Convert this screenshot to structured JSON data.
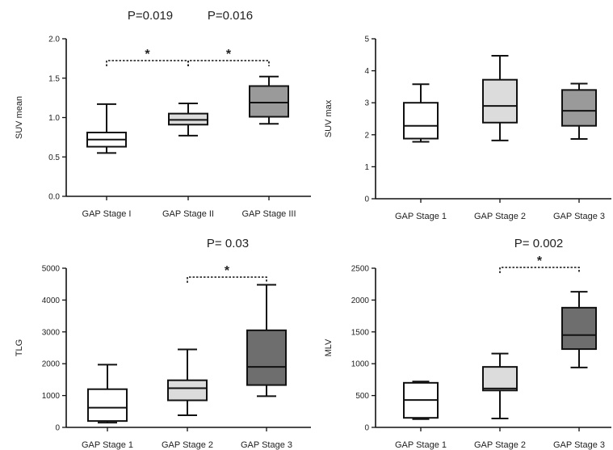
{
  "colors": {
    "axis": "#111111",
    "stroke": "#111111",
    "background": "#ffffff"
  },
  "chart_data": [
    {
      "type": "box",
      "title": "",
      "ylabel": "SUV mean",
      "ylim": [
        0,
        2.0
      ],
      "yticks": [
        "0.0",
        "0.5",
        "1.0",
        "1.5",
        "2.0"
      ],
      "ytick_values": [
        0,
        0.5,
        1.0,
        1.5,
        2.0
      ],
      "categories": [
        "GAP Stage I",
        "GAP Stage II",
        "GAP Stage III"
      ],
      "box_colors": [
        "#ffffff",
        "#dcdcdc",
        "#9a9a9a"
      ],
      "boxes": [
        {
          "min": 0.55,
          "q1": 0.63,
          "median": 0.72,
          "q3": 0.81,
          "max": 1.17
        },
        {
          "min": 0.77,
          "q1": 0.91,
          "median": 0.97,
          "q3": 1.05,
          "max": 1.18
        },
        {
          "min": 0.92,
          "q1": 1.01,
          "median": 1.19,
          "q3": 1.4,
          "max": 1.52
        }
      ],
      "pvalues": [
        "P=0.019",
        "P=0.016"
      ],
      "brackets": [
        {
          "from": 0,
          "to": 1,
          "label": "*"
        },
        {
          "from": 1,
          "to": 2,
          "label": "*"
        }
      ]
    },
    {
      "type": "box",
      "title": "",
      "ylabel": "SUV max",
      "ylim": [
        0,
        5
      ],
      "yticks": [
        "0",
        "1",
        "2",
        "3",
        "4",
        "5"
      ],
      "ytick_values": [
        0,
        1,
        2,
        3,
        4,
        5
      ],
      "categories": [
        "GAP Stage 1",
        "GAP Stage 2",
        "GAP Stage 3"
      ],
      "box_colors": [
        "#ffffff",
        "#dcdcdc",
        "#9a9a9a"
      ],
      "boxes": [
        {
          "min": 1.78,
          "q1": 1.88,
          "median": 2.28,
          "q3": 3.0,
          "max": 3.58
        },
        {
          "min": 1.82,
          "q1": 2.38,
          "median": 2.9,
          "q3": 3.72,
          "max": 4.47
        },
        {
          "min": 1.87,
          "q1": 2.28,
          "median": 2.75,
          "q3": 3.4,
          "max": 3.6
        }
      ],
      "pvalues": [],
      "brackets": []
    },
    {
      "type": "box",
      "title": "",
      "ylabel": "TLG",
      "ylim": [
        0,
        5000
      ],
      "yticks": [
        "0",
        "1000",
        "2000",
        "3000",
        "4000",
        "5000"
      ],
      "ytick_values": [
        0,
        1000,
        2000,
        3000,
        4000,
        5000
      ],
      "categories": [
        "GAP Stage 1",
        "GAP Stage 2",
        "GAP Stage 3"
      ],
      "box_colors": [
        "#ffffff",
        "#dcdcdc",
        "#6e6e6e"
      ],
      "boxes": [
        {
          "min": 150,
          "q1": 200,
          "median": 620,
          "q3": 1200,
          "max": 1970
        },
        {
          "min": 380,
          "q1": 850,
          "median": 1230,
          "q3": 1480,
          "max": 2450
        },
        {
          "min": 980,
          "q1": 1330,
          "median": 1900,
          "q3": 3050,
          "max": 4480
        }
      ],
      "pvalues": [
        "P= 0.03"
      ],
      "brackets": [
        {
          "from": 1,
          "to": 2,
          "label": "*"
        }
      ]
    },
    {
      "type": "box",
      "title": "",
      "ylabel": "MLV",
      "ylim": [
        0,
        2500
      ],
      "yticks": [
        "0",
        "500",
        "1000",
        "1500",
        "2000",
        "2500"
      ],
      "ytick_values": [
        0,
        500,
        1000,
        1500,
        2000,
        2500
      ],
      "categories": [
        "GAP Stage 1",
        "GAP Stage 2",
        "GAP Stage 3"
      ],
      "box_colors": [
        "#ffffff",
        "#dcdcdc",
        "#6e6e6e"
      ],
      "boxes": [
        {
          "min": 130,
          "q1": 150,
          "median": 430,
          "q3": 700,
          "max": 720
        },
        {
          "min": 140,
          "q1": 580,
          "median": 610,
          "q3": 950,
          "max": 1160
        },
        {
          "min": 940,
          "q1": 1230,
          "median": 1450,
          "q3": 1880,
          "max": 2130
        }
      ],
      "pvalues": [
        "P= 0.002"
      ],
      "brackets": [
        {
          "from": 1,
          "to": 2,
          "label": "*"
        }
      ]
    }
  ]
}
